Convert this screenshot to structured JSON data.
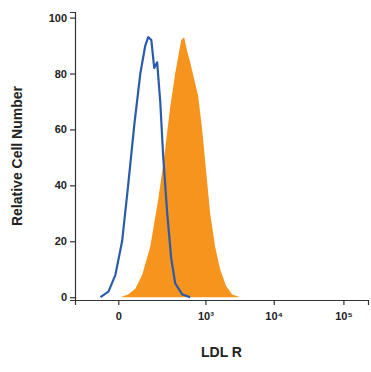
{
  "chart_data": {
    "type": "area",
    "x_label": "LDL R",
    "y_label": "Relative Cell Number",
    "log": "x",
    "xlim": [
      -190,
      225000
    ],
    "xticks": [
      0,
      {
        "value": 1000,
        "label": "10³"
      },
      {
        "value": 10000,
        "label": "10⁴"
      },
      {
        "value": 100000,
        "label": "10⁵"
      }
    ],
    "ylim": [
      -1,
      102
    ],
    "yticks": [
      0,
      20,
      40,
      60,
      80,
      100
    ],
    "series": [
      {
        "type": "area",
        "color": "#f7941d",
        "x": [
          4,
          23,
          45,
          72,
          112,
          164,
          212,
          272,
          331,
          372,
          417,
          466,
          521,
          581,
          671,
          774,
          892,
          1025,
          1178,
          1399,
          1660,
          2035,
          2494,
          3262
        ],
        "values": [
          0,
          1,
          3,
          8,
          18,
          35,
          50,
          68,
          80,
          86,
          92,
          93,
          88,
          84,
          78,
          72,
          60,
          45,
          30,
          18,
          10,
          4,
          1,
          0
        ]
      },
      {
        "type": "line",
        "color": "#2a5caa",
        "x": [
          -48,
          -23,
          -6,
          8,
          23,
          42,
          64,
          86,
          101,
          118,
          136,
          156,
          179,
          204,
          241,
          283,
          331,
          433,
          581
        ],
        "values": [
          0,
          2,
          8,
          20,
          40,
          62,
          80,
          90,
          93,
          92,
          82,
          84,
          70,
          50,
          30,
          14,
          5,
          1,
          0
        ]
      }
    ]
  }
}
